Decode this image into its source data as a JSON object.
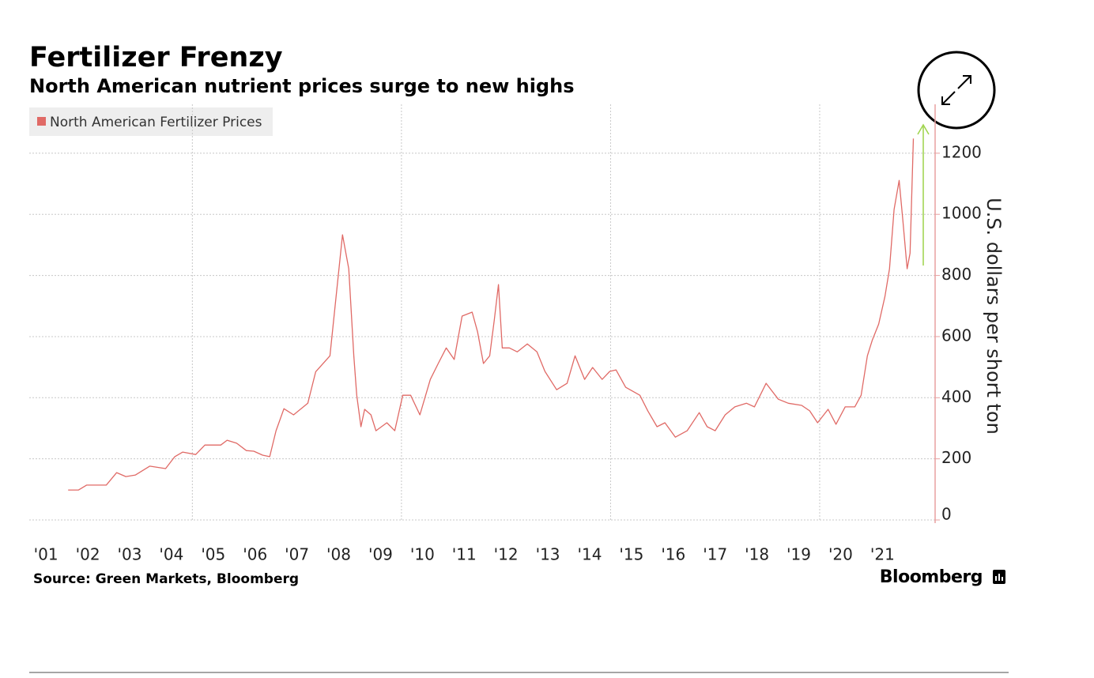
{
  "chart_data": {
    "type": "line",
    "title": "Fertilizer Frenzy",
    "subtitle": "North American nutrient prices surge to new highs",
    "y_label": "U.S. dollars per short ton",
    "source": "Source: Green Markets, Bloomberg",
    "brand": "Bloomberg",
    "legend_position": "upper left",
    "grid": true,
    "xlim": [
      2001.1,
      2022.76
    ],
    "ylim": [
      0,
      1360
    ],
    "xgrid": [
      2005,
      2010,
      2015,
      2020
    ],
    "xticks": [
      {
        "value": 2001.5,
        "label": "'01"
      },
      {
        "value": 2002.5,
        "label": "'02"
      },
      {
        "value": 2003.5,
        "label": "'03"
      },
      {
        "value": 2004.5,
        "label": "'04"
      },
      {
        "value": 2005.5,
        "label": "'05"
      },
      {
        "value": 2006.5,
        "label": "'06"
      },
      {
        "value": 2007.5,
        "label": "'07"
      },
      {
        "value": 2008.5,
        "label": "'08"
      },
      {
        "value": 2009.5,
        "label": "'09"
      },
      {
        "value": 2010.5,
        "label": "'10"
      },
      {
        "value": 2011.5,
        "label": "'11"
      },
      {
        "value": 2012.5,
        "label": "'12"
      },
      {
        "value": 2013.5,
        "label": "'13"
      },
      {
        "value": 2014.5,
        "label": "'14"
      },
      {
        "value": 2015.5,
        "label": "'15"
      },
      {
        "value": 2016.5,
        "label": "'16"
      },
      {
        "value": 2017.5,
        "label": "'17"
      },
      {
        "value": 2018.5,
        "label": "'18"
      },
      {
        "value": 2019.5,
        "label": "'19"
      },
      {
        "value": 2020.5,
        "label": "'20"
      },
      {
        "value": 2021.5,
        "label": "'21"
      }
    ],
    "yticks": [
      0,
      200,
      400,
      600,
      800,
      1000,
      1200
    ],
    "x": [
      2002.03,
      2002.28,
      2002.47,
      2002.94,
      2003.19,
      2003.41,
      2003.64,
      2003.98,
      2004.36,
      2004.58,
      2004.77,
      2005.08,
      2005.3,
      2005.68,
      2005.83,
      2006.06,
      2006.29,
      2006.47,
      2006.68,
      2006.85,
      2007.0,
      2007.19,
      2007.42,
      2007.76,
      2007.95,
      2008.29,
      2008.59,
      2008.74,
      2008.86,
      2008.93,
      2009.03,
      2009.12,
      2009.27,
      2009.39,
      2009.65,
      2009.84,
      2010.03,
      2010.22,
      2010.44,
      2010.69,
      2010.88,
      2011.07,
      2011.26,
      2011.45,
      2011.69,
      2011.82,
      2011.96,
      2012.11,
      2012.22,
      2012.32,
      2012.41,
      2012.58,
      2012.77,
      2013.01,
      2013.24,
      2013.43,
      2013.71,
      2013.96,
      2014.15,
      2014.38,
      2014.57,
      2014.8,
      2014.98,
      2015.13,
      2015.36,
      2015.7,
      2015.89,
      2016.11,
      2016.3,
      2016.55,
      2016.83,
      2017.12,
      2017.31,
      2017.5,
      2017.74,
      2017.97,
      2018.25,
      2018.44,
      2018.72,
      2019.01,
      2019.25,
      2019.57,
      2019.76,
      2019.95,
      2020.2,
      2020.39,
      2020.61,
      2020.84,
      2020.99,
      2021.14,
      2021.26,
      2021.41,
      2021.56,
      2021.67,
      2021.78,
      2021.9,
      2021.99,
      2022.09,
      2022.16,
      2022.24
    ],
    "series": [
      {
        "name": "North American Fertilizer Prices",
        "color": "#e06a66",
        "values": [
          98,
          98,
          114,
          114,
          155,
          142,
          147,
          176,
          168,
          207,
          222,
          214,
          245,
          245,
          261,
          251,
          227,
          225,
          212,
          207,
          292,
          364,
          344,
          382,
          485,
          537,
          933,
          822,
          537,
          408,
          305,
          362,
          344,
          292,
          318,
          292,
          408,
          408,
          344,
          460,
          512,
          563,
          525,
          667,
          680,
          615,
          512,
          537,
          654,
          770,
          563,
          563,
          550,
          576,
          550,
          486,
          426,
          447,
          537,
          460,
          499,
          460,
          486,
          491,
          434,
          408,
          357,
          305,
          318,
          271,
          292,
          351,
          305,
          292,
          344,
          370,
          382,
          370,
          447,
          395,
          382,
          375,
          357,
          318,
          362,
          313,
          370,
          370,
          408,
          537,
          589,
          641,
          731,
          822,
          1016,
          1111,
          977,
          822,
          873,
          1248
        ]
      }
    ]
  }
}
